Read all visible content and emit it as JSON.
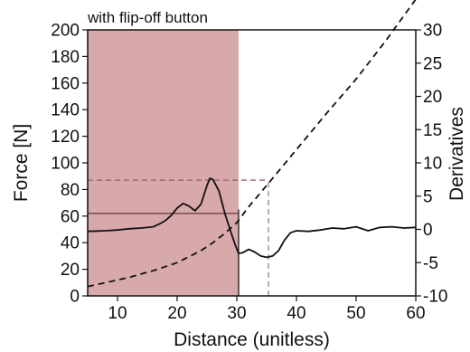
{
  "chart_data": {
    "type": "line",
    "title": "with flip-off button",
    "xlabel": "Distance (unitless)",
    "ylabel_left": "Force [N]",
    "ylabel_right": "Derivatives",
    "xlim": [
      5,
      60
    ],
    "ylim_left": [
      0,
      200
    ],
    "ylim_right": [
      -10,
      30
    ],
    "x_ticks": [
      10,
      20,
      30,
      40,
      50,
      60
    ],
    "y_left_ticks": [
      0,
      20,
      40,
      60,
      80,
      100,
      120,
      140,
      160,
      180,
      200
    ],
    "y_right_ticks": [
      -10,
      -5,
      0,
      5,
      10,
      15,
      20,
      25,
      30
    ],
    "grid": false,
    "shaded_region": {
      "x": [
        5,
        30.3
      ],
      "color": "#d8a9ab"
    },
    "series": [
      {
        "axis": "right",
        "style": "solid",
        "color": "#111111",
        "x": [
          5,
          8,
          10,
          12,
          14,
          16,
          17,
          18,
          19,
          20,
          21,
          22,
          23,
          24,
          25,
          25.5,
          26,
          27,
          28,
          29,
          29.8,
          30.3,
          31,
          32,
          33,
          34,
          35,
          36,
          37,
          38,
          39,
          40,
          42,
          44,
          46,
          48,
          50,
          52,
          54,
          56,
          58,
          60
        ],
        "y": [
          -0.3,
          -0.2,
          -0.1,
          0.1,
          0.2,
          0.4,
          0.8,
          1.3,
          2.1,
          3.2,
          3.9,
          3.5,
          2.8,
          3.8,
          6.6,
          7.7,
          7.5,
          5.8,
          2.4,
          -0.4,
          -2.5,
          -3.6,
          -3.5,
          -3.0,
          -3.4,
          -4.0,
          -4.2,
          -4.0,
          -3.2,
          -1.6,
          -0.5,
          -0.2,
          -0.3,
          -0.1,
          0.2,
          0.1,
          0.4,
          -0.2,
          0.3,
          0.4,
          0.2,
          0.3
        ]
      },
      {
        "axis": "left",
        "style": "dashed",
        "color": "#111111",
        "x": [
          5,
          8,
          12,
          16,
          20,
          24,
          26,
          28,
          30,
          32,
          35,
          40,
          45,
          50,
          55,
          60
        ],
        "y": [
          7,
          10,
          14,
          19,
          25,
          34,
          40,
          47,
          55,
          67,
          83,
          110,
          137,
          163,
          192,
          223
        ]
      }
    ],
    "reference_lines": [
      {
        "kind": "horizontal",
        "y": 62,
        "axis": "left",
        "x_from": 5,
        "x_to": 30.3,
        "style": "solid",
        "color": "#7a4a4c"
      },
      {
        "kind": "horizontal",
        "y": 87,
        "axis": "left",
        "x_from": 5,
        "x_to": 35.3,
        "style": "dashed",
        "color": "#9a6e70"
      },
      {
        "kind": "vertical",
        "x": 35.3,
        "y_from": 0,
        "y_to": 87,
        "axis": "left",
        "style": "dashed",
        "color": "#999999"
      },
      {
        "kind": "vertical",
        "x": 30.3,
        "y_from": 0,
        "y_to": 65,
        "axis": "left",
        "style": "solid",
        "color": "#333333"
      }
    ]
  }
}
